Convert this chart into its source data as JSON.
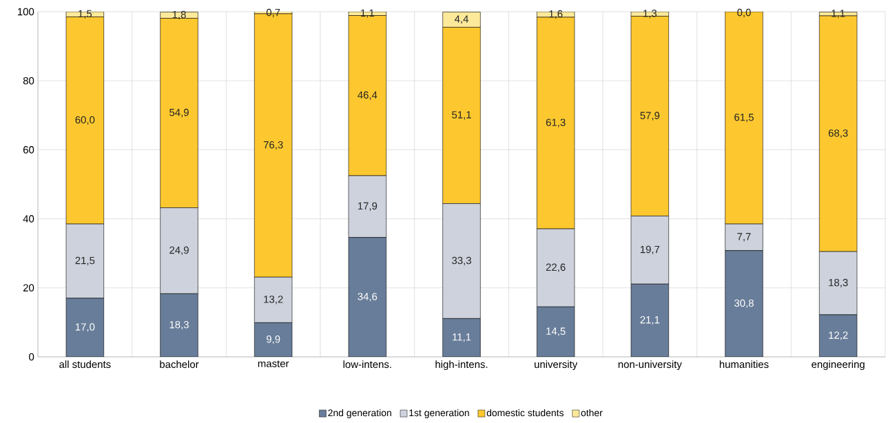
{
  "chart_data": {
    "type": "bar",
    "stacked": true,
    "categories": [
      "all students",
      "bachelor",
      "master",
      "low-intens.",
      "high-intens.",
      "university",
      "non-university",
      "humanities",
      "engineering"
    ],
    "series": [
      {
        "name": "2nd generation",
        "color": "#687d99",
        "values": [
          17.0,
          18.3,
          9.9,
          34.6,
          11.1,
          14.5,
          21.1,
          30.8,
          12.2
        ],
        "value_labels": [
          "17,0",
          "18,3",
          "9,9",
          "34,6",
          "11,1",
          "14,5",
          "21,1",
          "30,8",
          "12,2"
        ]
      },
      {
        "name": "1st generation",
        "color": "#cdd2dc",
        "values": [
          21.5,
          24.9,
          13.2,
          17.9,
          33.3,
          22.6,
          19.7,
          7.7,
          18.3
        ],
        "value_labels": [
          "21,5",
          "24,9",
          "13,2",
          "17,9",
          "33,3",
          "22,6",
          "19,7",
          "7,7",
          "18,3"
        ]
      },
      {
        "name": "domestic students",
        "color": "#fdc82f",
        "values": [
          60.0,
          54.9,
          76.3,
          46.4,
          51.1,
          61.3,
          57.9,
          61.5,
          68.3
        ],
        "value_labels": [
          "60,0",
          "54,9",
          "76,3",
          "46,4",
          "51,1",
          "61,3",
          "57,9",
          "61,5",
          "68,3"
        ]
      },
      {
        "name": "other",
        "color": "#fde99a",
        "values": [
          1.5,
          1.8,
          0.7,
          1.1,
          4.4,
          1.6,
          1.3,
          0.0,
          1.1
        ],
        "value_labels": [
          "1,5",
          "1,8",
          "0,7",
          "1,1",
          "4,4",
          "1,6",
          "1,3",
          "0,0",
          "1,1"
        ]
      }
    ],
    "ylim": [
      0,
      100
    ],
    "yticks": [
      0,
      20,
      40,
      60,
      80,
      100
    ],
    "grid": true,
    "legend": "bottom"
  }
}
